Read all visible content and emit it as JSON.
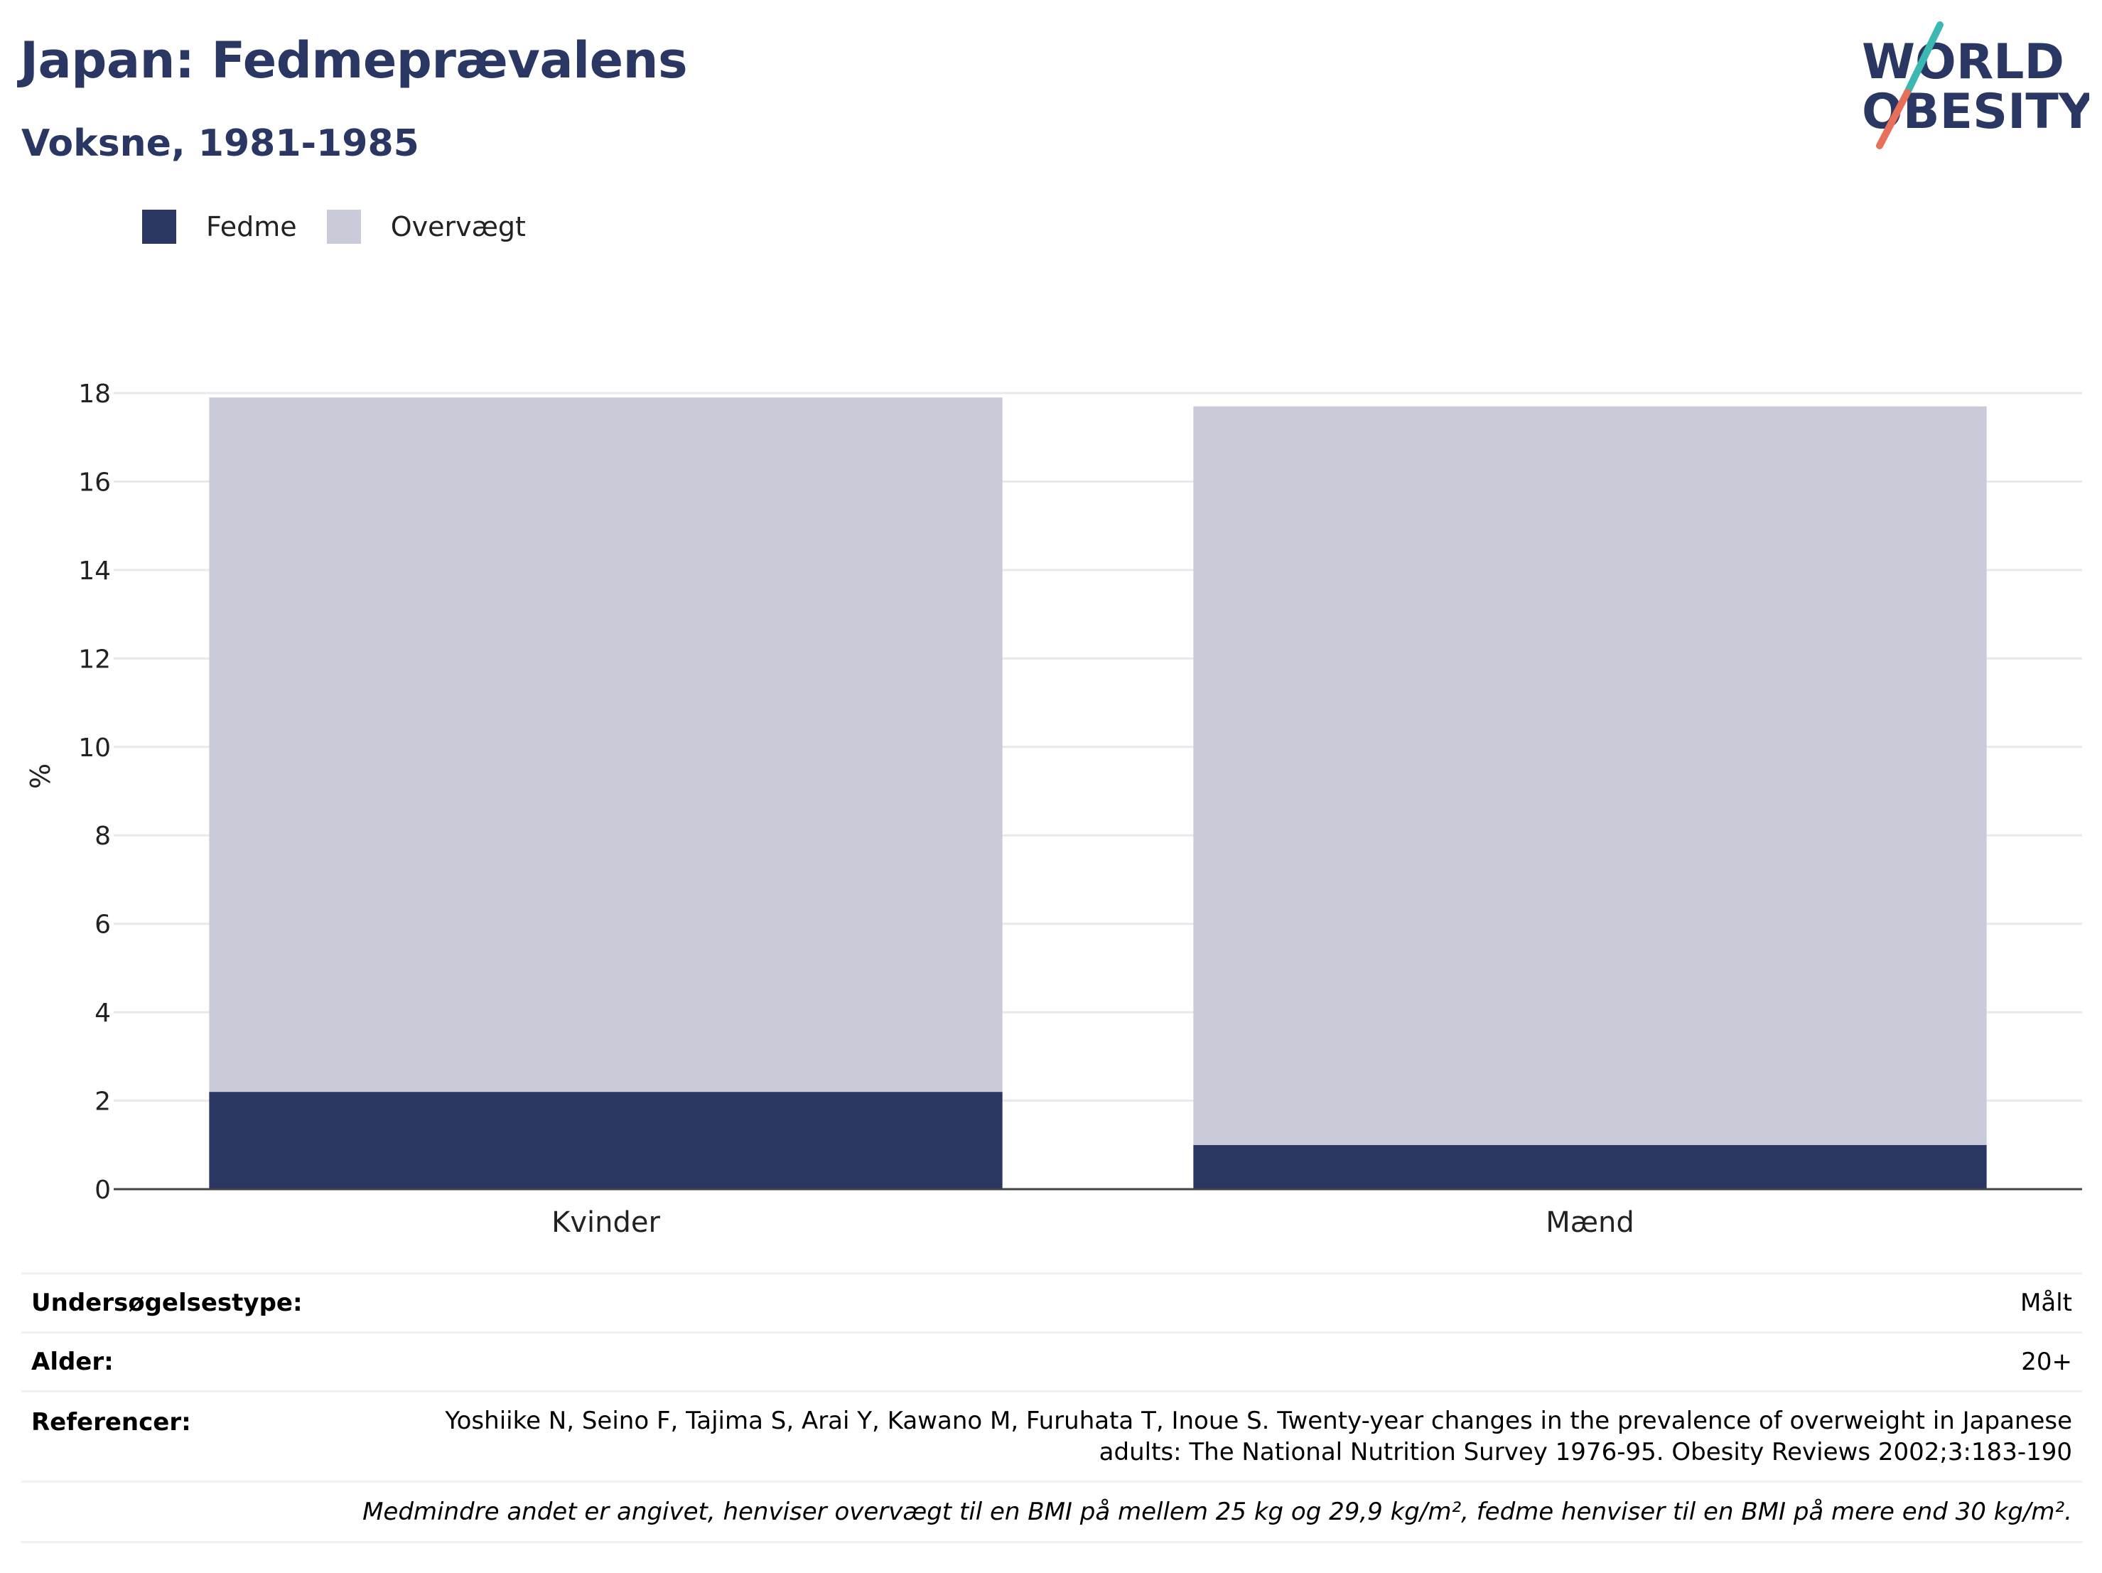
{
  "header": {
    "title": "Japan: Fedmeprævalens",
    "subtitle": "Voksne, 1981-1985"
  },
  "logo": {
    "line1": "WORLD",
    "line2": "OBESITY"
  },
  "colors": {
    "obesity": "#2a3763",
    "overweight": "#c9ccd8",
    "title": "#2a3763",
    "logo_teal": "#3cb8b2",
    "logo_red": "#e8705a"
  },
  "chart_data": {
    "type": "bar",
    "stacked": true,
    "categories": [
      "Kvinder",
      "Mænd"
    ],
    "series": [
      {
        "name": "Fedme",
        "values": [
          2.2,
          1.0
        ]
      },
      {
        "name": "Overvægt",
        "values": [
          15.7,
          16.7
        ]
      }
    ],
    "ylabel": "%",
    "xlabel": "",
    "ylim": [
      0,
      18
    ],
    "yticks": [
      0,
      2,
      4,
      6,
      8,
      10,
      12,
      14,
      16,
      18
    ],
    "grid": true,
    "legend_position": "top-left"
  },
  "info": {
    "survey_type_label": "Undersøgelsestype:",
    "survey_type_value": "Målt",
    "age_label": "Alder:",
    "age_value": "20+",
    "references_label": "Referencer:",
    "references_line1": "Yoshiike N, Seino F, Tajima S, Arai Y, Kawano M, Furuhata T, Inoue S. Twenty-year changes in the prevalence of overweight in Japanese",
    "references_line2": "adults: The National Nutrition Survey 1976-95. Obesity Reviews 2002;3:183-190",
    "note": "Medmindre andet er angivet, henviser overvægt til en BMI på mellem 25 kg og 29,9 kg/m², fedme henviser til en BMI på mere end 30 kg/m²."
  }
}
